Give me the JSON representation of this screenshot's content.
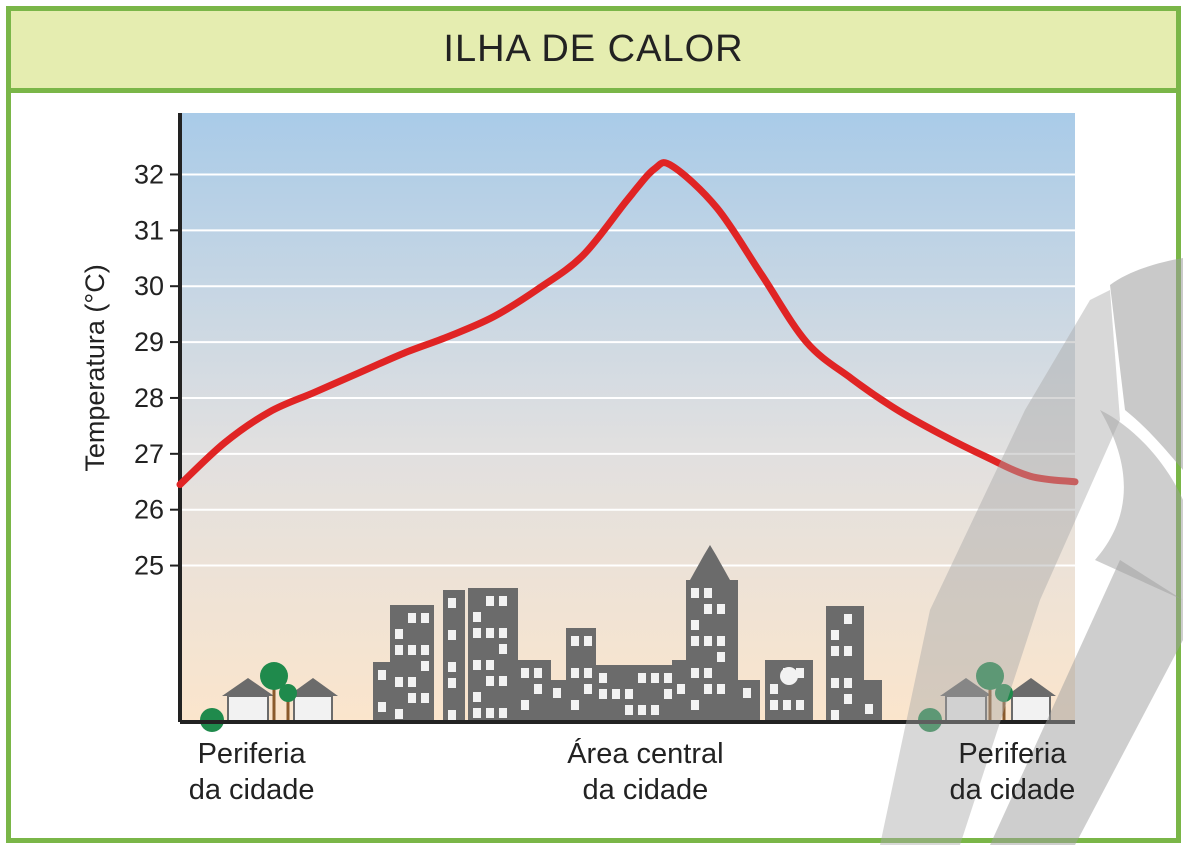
{
  "page": {
    "title": "ILHA DE CALOR",
    "colors": {
      "frame": "#7ab648",
      "title_bg": "#e5edb0",
      "curve": "#e02424",
      "sky_top": "#a9cbe8",
      "sky_bottom": "#fbe5cc",
      "buildings": "#6b6b6b"
    }
  },
  "chart_data": {
    "type": "line",
    "title": "ILHA DE CALOR",
    "ylabel": "Temperatura (°C)",
    "xlabel": "",
    "yticks": [
      25,
      26,
      27,
      28,
      29,
      30,
      31,
      32
    ],
    "ylim": [
      22.2,
      33.1
    ],
    "grid": true,
    "categories": [
      {
        "position": 0.08,
        "lines": [
          "Periferia",
          "da cidade"
        ]
      },
      {
        "position": 0.52,
        "lines": [
          "Área central",
          "da cidade"
        ]
      },
      {
        "position": 0.93,
        "lines": [
          "Periferia",
          "da cidade"
        ]
      }
    ],
    "series": [
      {
        "x": [
          0,
          0.05,
          0.1,
          0.15,
          0.2,
          0.25,
          0.3,
          0.35,
          0.4,
          0.45,
          0.5,
          0.53,
          0.55,
          0.6,
          0.65,
          0.7,
          0.75,
          0.8,
          0.85,
          0.9,
          0.95,
          1
        ],
        "y": [
          26.45,
          27.2,
          27.75,
          28.1,
          28.45,
          28.8,
          29.1,
          29.45,
          29.95,
          30.55,
          31.55,
          32.1,
          32.15,
          31.4,
          30.2,
          29.0,
          28.35,
          27.8,
          27.35,
          26.95,
          26.6,
          26.5
        ]
      }
    ]
  }
}
